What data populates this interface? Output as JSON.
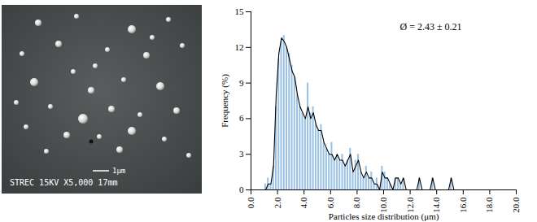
{
  "micrograph": {
    "scale_bar": "1μm",
    "caption": "STREC 15KV X5,000 17mm"
  },
  "chart_data": {
    "type": "histogram",
    "xlabel": "Particles size distribution (μm)",
    "ylabel": "Frequency (%)",
    "annotation": "Ø = 2.43 ± 0.21",
    "bins": [
      1,
      1.2,
      1.4,
      1.6,
      1.8,
      2,
      2.2,
      2.4,
      2.6,
      2.8,
      3,
      3.2,
      3.4,
      3.6,
      3.8,
      4,
      4.2,
      4.4,
      4.6,
      4.8,
      5,
      5.2,
      5.4,
      5.6,
      5.8,
      6,
      6.2,
      6.4,
      6.6,
      6.8,
      7,
      7.2,
      7.4,
      7.6,
      7.8,
      8,
      8.2,
      8.4,
      8.6,
      8.8,
      9,
      9.2,
      9.4,
      9.6,
      9.8,
      10,
      10.2,
      10.4,
      10.6,
      10.8,
      11,
      11.2,
      11.4,
      11.6,
      11.8,
      12,
      12.2,
      12.4,
      12.6,
      12.8,
      13,
      13.2,
      13.4,
      13.6,
      13.8,
      14,
      14.2,
      14.4,
      14.6,
      14.8,
      15,
      15.2,
      15.4,
      15.6,
      15.8,
      16
    ],
    "series": [
      {
        "type": "bar",
        "color": "#9cc3e5",
        "values": [
          0.5,
          1,
          0.5,
          2,
          7,
          11,
          12.5,
          13,
          12,
          11.5,
          10.5,
          9.5,
          8,
          7,
          6.5,
          6,
          9,
          6.5,
          7,
          5.5,
          5,
          5.5,
          4,
          3.5,
          3,
          4,
          2.5,
          3,
          2.5,
          3,
          2,
          2.5,
          3.5,
          1.5,
          2.5,
          3,
          1.5,
          1,
          2,
          1,
          1.5,
          0.5,
          1,
          0,
          2,
          1.5,
          1,
          0.5,
          0,
          1,
          1,
          0.5,
          1,
          0,
          0,
          0,
          0,
          0,
          1,
          0,
          0,
          0,
          0,
          1,
          0,
          0,
          0,
          0,
          0,
          0,
          1,
          0,
          0,
          0,
          0
        ]
      },
      {
        "type": "line",
        "color": "#000000",
        "values": [
          0,
          0.5,
          0.5,
          2,
          8,
          11.5,
          12.8,
          12.5,
          12,
          11,
          10,
          9.5,
          8,
          7,
          6.5,
          6,
          7,
          6,
          6.5,
          5.5,
          5,
          5,
          4,
          3.5,
          3,
          3,
          2.5,
          3,
          2.5,
          2.5,
          2,
          2.5,
          3,
          1.5,
          2,
          2.5,
          1.5,
          1,
          1.5,
          1,
          1,
          0.5,
          0.5,
          0,
          1.5,
          1,
          1,
          0.5,
          0,
          1,
          1,
          0.5,
          1,
          0,
          0,
          0,
          0,
          0,
          1,
          0,
          0,
          0,
          0,
          1,
          0,
          0,
          0,
          0,
          0,
          0,
          1,
          0,
          0,
          0,
          0
        ]
      }
    ],
    "xlim": [
      0,
      20
    ],
    "xticks": [
      {
        "value": 0,
        "label": "0.0"
      },
      {
        "value": 2,
        "label": "2.0"
      },
      {
        "value": 4,
        "label": "4.0"
      },
      {
        "value": 6,
        "label": "6.0"
      },
      {
        "value": 8,
        "label": "8.0"
      },
      {
        "value": 10,
        "label": "10.0"
      },
      {
        "value": 12,
        "label": "12.0"
      },
      {
        "value": 14,
        "label": "14.0"
      },
      {
        "value": 16,
        "label": "16.0"
      },
      {
        "value": 18,
        "label": "18.0"
      },
      {
        "value": 20,
        "label": "20.0"
      }
    ],
    "ylim": [
      0,
      15
    ],
    "yticks": [
      0,
      3,
      6,
      9,
      12,
      15
    ],
    "grid": false
  }
}
